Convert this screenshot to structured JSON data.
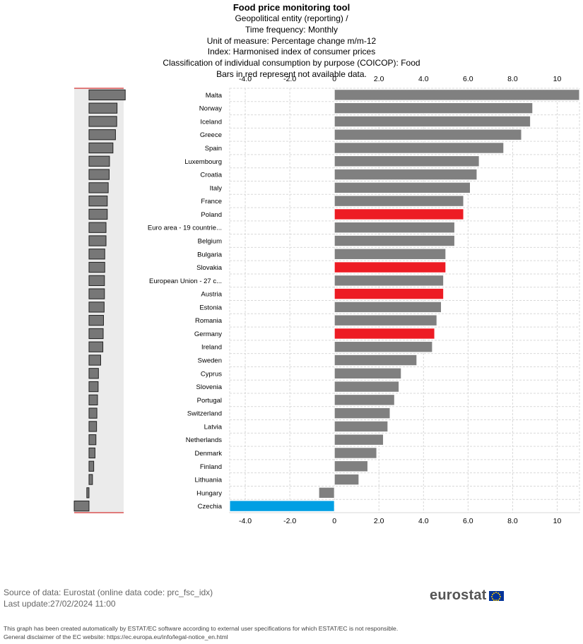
{
  "header": {
    "title": "Food price monitoring tool",
    "lines": [
      "Geopolitical entity (reporting) /",
      "Time frequency: Monthly",
      "Unit of measure: Percentage change m/m-12",
      "Index: Harmonised index of consumer prices",
      "Classification of individual consumption by purpose (COICOP): Food",
      "Bars in red represent not available data."
    ]
  },
  "chart_data": {
    "type": "bar",
    "orientation": "horizontal",
    "categories": [
      "Malta",
      "Norway",
      "Iceland",
      "Greece",
      "Spain",
      "Luxembourg",
      "Croatia",
      "Italy",
      "France",
      "Poland",
      "Euro area - 19 countrie...",
      "Belgium",
      "Bulgaria",
      "Slovakia",
      "European Union - 27 c...",
      "Austria",
      "Estonia",
      "Romania",
      "Germany",
      "Ireland",
      "Sweden",
      "Cyprus",
      "Slovenia",
      "Portugal",
      "Switzerland",
      "Latvia",
      "Netherlands",
      "Denmark",
      "Finland",
      "Lithuania",
      "Hungary",
      "Czechia"
    ],
    "values": [
      11.5,
      8.9,
      8.8,
      8.4,
      7.6,
      6.5,
      6.4,
      6.1,
      5.8,
      5.8,
      5.4,
      5.4,
      5.0,
      5.0,
      4.9,
      4.9,
      4.8,
      4.6,
      4.5,
      4.4,
      3.7,
      3.0,
      2.9,
      2.7,
      2.5,
      2.4,
      2.2,
      1.9,
      1.5,
      1.1,
      -0.7,
      -4.7
    ],
    "bar_status": [
      "normal",
      "normal",
      "normal",
      "normal",
      "normal",
      "normal",
      "normal",
      "normal",
      "normal",
      "not_available",
      "normal",
      "normal",
      "normal",
      "not_available",
      "normal",
      "not_available",
      "normal",
      "normal",
      "not_available",
      "normal",
      "normal",
      "normal",
      "normal",
      "normal",
      "normal",
      "normal",
      "normal",
      "normal",
      "normal",
      "normal",
      "normal",
      "highlight"
    ],
    "colors": {
      "normal": "#808080",
      "not_available": "#ed1c24",
      "highlight": "#009fe3",
      "grid": "#d9d9d9",
      "navigator_bg": "#ebebeb",
      "navigator_bar": "#777777"
    },
    "x_ticks": [
      "-4.0",
      "-2.0",
      "0",
      "2.0",
      "4.0",
      "6.0",
      "8.0",
      "10"
    ],
    "x_tick_values": [
      -4,
      -2,
      0,
      2,
      4,
      6,
      8,
      10
    ],
    "xlim": [
      -4.7,
      11.0
    ],
    "grid": true,
    "legend": "none"
  },
  "source": {
    "line1": "Source of data: Eurostat (online data code: prc_fsc_idx)",
    "line2": "Last update:27/02/2024 11:00"
  },
  "disclaimer": {
    "line1": "This graph has been created automatically by ESTAT/EC software according to external user specifications for which ESTAT/EC is not responsible.",
    "line2": "General disclaimer of the EC website: https://ec.europa.eu/info/legal-notice_en.html"
  },
  "logo": {
    "text": "eurostat"
  }
}
